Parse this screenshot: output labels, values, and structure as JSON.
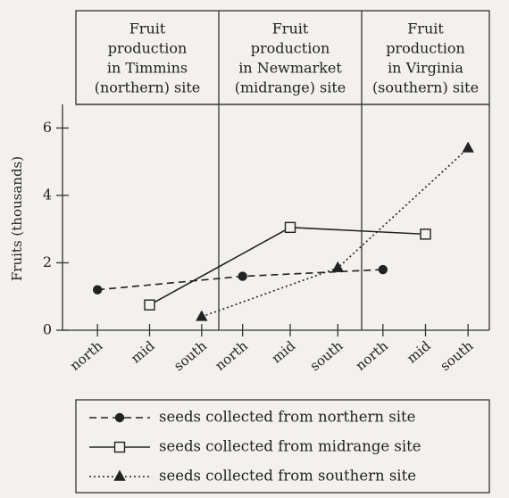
{
  "chart_data": {
    "type": "line",
    "y_label": "Fruits (thousands)",
    "panels": [
      {
        "title_lines": [
          "Fruit",
          "production",
          "in Timmins",
          "(northern) site"
        ],
        "categories": [
          "north",
          "mid",
          "south"
        ]
      },
      {
        "title_lines": [
          "Fruit",
          "production",
          "in Newmarket",
          "(midrange) site"
        ],
        "categories": [
          "north",
          "mid",
          "south"
        ]
      },
      {
        "title_lines": [
          "Fruit",
          "production",
          "in Virginia",
          "(southern) site"
        ],
        "categories": [
          "north",
          "mid",
          "south"
        ]
      }
    ],
    "series": [
      {
        "name": "seeds collected from northern site",
        "color": "#222222",
        "line_style": "dashed",
        "marker": "circle",
        "values": [
          1.2,
          1.6,
          1.8
        ]
      },
      {
        "name": "seeds collected from midrange site",
        "color": "#222222",
        "line_style": "solid",
        "marker": "square",
        "values": [
          0.75,
          3.05,
          2.85
        ]
      },
      {
        "name": "seeds collected from southern site",
        "color": "#222222",
        "line_style": "dotted",
        "marker": "triangle",
        "values": [
          0.4,
          1.85,
          5.4
        ]
      }
    ],
    "ylim": [
      0,
      6.7
    ],
    "yticks": [
      0,
      2,
      4,
      6
    ]
  }
}
